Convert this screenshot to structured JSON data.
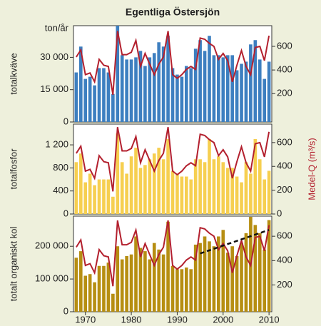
{
  "title": "Egentliga Östersjön",
  "chart_data": [
    {
      "type": "bar",
      "ylabel": "totalkväve",
      "yunit": "ton/år",
      "x": [
        1968,
        1969,
        1970,
        1971,
        1972,
        1973,
        1974,
        1975,
        1976,
        1977,
        1978,
        1979,
        1980,
        1981,
        1982,
        1983,
        1984,
        1985,
        1986,
        1987,
        1988,
        1989,
        1990,
        1991,
        1992,
        1993,
        1994,
        1995,
        1996,
        1997,
        1998,
        1999,
        2000,
        2001,
        2002,
        2003,
        2004,
        2005,
        2006,
        2007,
        2008,
        2009,
        2010
      ],
      "values": [
        23000,
        35000,
        20000,
        21000,
        17000,
        25000,
        25000,
        23000,
        13000,
        46000,
        31000,
        29000,
        29000,
        30000,
        33000,
        26000,
        30000,
        32000,
        37000,
        35000,
        40000,
        25000,
        22000,
        21000,
        26000,
        25000,
        34000,
        38000,
        33000,
        40000,
        31000,
        31000,
        30000,
        31000,
        31000,
        24000,
        27000,
        28000,
        36000,
        38000,
        29000,
        20000,
        28000
      ],
      "color": "#3d7fc0",
      "line": {
        "axis": "y2",
        "color": "#b3202e",
        "values": [
          510,
          570,
          360,
          375,
          300,
          490,
          440,
          430,
          190,
          730,
          530,
          530,
          550,
          650,
          430,
          540,
          450,
          360,
          450,
          510,
          730,
          360,
          330,
          360,
          405,
          430,
          405,
          670,
          660,
          625,
          600,
          490,
          540,
          480,
          300,
          440,
          565,
          430,
          360,
          590,
          600,
          480,
          690
        ]
      },
      "xlim": [
        1967.4,
        2010.6
      ],
      "ylim": [
        0,
        44700
      ],
      "yticks": [
        0,
        {
          "value": 15000,
          "label": "15 000"
        },
        {
          "value": 30000,
          "label": "30 000"
        }
      ],
      "y2lim": [
        -40,
        775
      ],
      "y2ticks": [
        200,
        400,
        600
      ]
    },
    {
      "type": "bar",
      "ylabel": "totalfosfor",
      "y2label": "Medel-Q (m³/s)",
      "x": [
        1968,
        1969,
        1970,
        1971,
        1972,
        1973,
        1974,
        1975,
        1976,
        1977,
        1978,
        1979,
        1980,
        1981,
        1982,
        1983,
        1984,
        1985,
        1986,
        1987,
        1988,
        1989,
        1990,
        1991,
        1992,
        1993,
        1994,
        1995,
        1996,
        1997,
        1998,
        1999,
        2000,
        2001,
        2002,
        2003,
        2004,
        2005,
        2006,
        2007,
        2008,
        2009,
        2010
      ],
      "values": [
        900,
        1050,
        550,
        700,
        500,
        600,
        600,
        600,
        300,
        1400,
        900,
        700,
        1000,
        1150,
        800,
        850,
        950,
        1050,
        1150,
        950,
        1300,
        750,
        700,
        650,
        650,
        600,
        950,
        950,
        900,
        1300,
        950,
        1000,
        900,
        800,
        800,
        650,
        550,
        900,
        700,
        1300,
        950,
        600,
        750
      ],
      "color": "#f6cf50",
      "line": {
        "axis": "y2",
        "color": "#b3202e",
        "values": [
          510,
          570,
          360,
          375,
          300,
          490,
          440,
          430,
          190,
          730,
          530,
          530,
          550,
          650,
          430,
          540,
          450,
          360,
          450,
          510,
          730,
          360,
          330,
          360,
          405,
          430,
          405,
          670,
          660,
          625,
          600,
          490,
          540,
          480,
          300,
          440,
          565,
          430,
          360,
          590,
          600,
          480,
          690
        ]
      },
      "xlim": [
        1967.4,
        2010.6
      ],
      "ylim": [
        0,
        1560
      ],
      "yticks": [
        0,
        400,
        800,
        {
          "value": 1200,
          "label": "1 200"
        }
      ],
      "y2lim": [
        0,
        755
      ],
      "y2ticks": [
        0,
        200,
        400,
        600
      ]
    },
    {
      "type": "bar",
      "ylabel": "totalt organiskt kol",
      "x": [
        1968,
        1969,
        1970,
        1971,
        1972,
        1973,
        1974,
        1975,
        1976,
        1977,
        1978,
        1979,
        1980,
        1981,
        1982,
        1983,
        1984,
        1985,
        1986,
        1987,
        1988,
        1989,
        1990,
        1991,
        1992,
        1993,
        1994,
        1995,
        1996,
        1997,
        1998,
        1999,
        2000,
        2001,
        2002,
        2003,
        2004,
        2005,
        2006,
        2007,
        2008,
        2009,
        2010
      ],
      "values": [
        165000,
        185000,
        110000,
        115000,
        90000,
        140000,
        140000,
        150000,
        55000,
        200000,
        160000,
        170000,
        175000,
        230000,
        195000,
        185000,
        160000,
        210000,
        190000,
        175000,
        275000,
        140000,
        130000,
        130000,
        135000,
        130000,
        205000,
        210000,
        230000,
        215000,
        200000,
        230000,
        250000,
        180000,
        200000,
        170000,
        210000,
        240000,
        290000,
        265000,
        240000,
        190000,
        280000
      ],
      "color": "#b68e12",
      "line": {
        "axis": "y2",
        "color": "#b3202e",
        "values": [
          510,
          570,
          360,
          375,
          300,
          490,
          440,
          430,
          190,
          730,
          530,
          530,
          550,
          650,
          430,
          540,
          450,
          360,
          450,
          510,
          730,
          360,
          330,
          360,
          405,
          430,
          405,
          670,
          660,
          625,
          600,
          490,
          540,
          480,
          300,
          440,
          565,
          430,
          360,
          590,
          600,
          480,
          690
        ]
      },
      "trend": {
        "x": [
          1995,
          2010
        ],
        "values": [
          178000,
          250000
        ]
      },
      "xlim": [
        1967.4,
        2010.6
      ],
      "ylim": [
        0,
        292000
      ],
      "yticks": [
        0,
        {
          "value": 100000,
          "label": "100 000"
        },
        {
          "value": 200000,
          "label": "200 000"
        }
      ],
      "xticks": [
        1970,
        1980,
        1990,
        2000,
        2010
      ],
      "y2lim": [
        -20,
        765
      ],
      "y2ticks": [
        200,
        400,
        600
      ]
    }
  ]
}
